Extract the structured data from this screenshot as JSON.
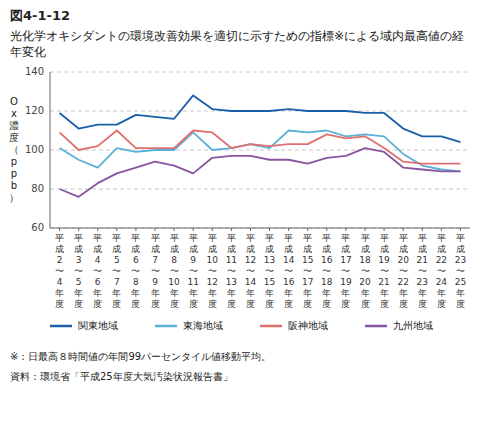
{
  "chart_data": {
    "type": "line",
    "title": "図4-1-12",
    "subtitle": "光化学オキシダントの環境改善効果を適切に示すための指標※による域内最高値の経年変化",
    "y_label": "Ox濃度（ppb）",
    "categories": [
      "平成2〜4年度",
      "平成3〜5年度",
      "平成4〜6年度",
      "平成5〜7年度",
      "平成6〜8年度",
      "平成7〜9年度",
      "平成8〜10年度",
      "平成9〜11年度",
      "平成10〜12年度",
      "平成11〜13年度",
      "平成12〜14年度",
      "平成13〜15年度",
      "平成14〜16年度",
      "平成15〜17年度",
      "平成16〜18年度",
      "平成17〜19年度",
      "平成18〜20年度",
      "平成19〜21年度",
      "平成20〜22年度",
      "平成21〜23年度",
      "平成22〜24年度",
      "平成23〜25年度"
    ],
    "series": [
      {
        "name": "関東地域",
        "color": "#1a5fa8",
        "values": [
          119,
          111,
          113,
          113,
          118,
          117,
          116,
          128,
          121,
          120,
          120,
          120,
          121,
          120,
          120,
          120,
          119,
          119,
          111,
          107,
          107,
          104
        ]
      },
      {
        "name": "東海地域",
        "color": "#5bb0d8",
        "values": [
          101,
          95,
          91,
          101,
          99,
          100,
          100,
          109,
          100,
          101,
          103,
          101,
          110,
          109,
          110,
          107,
          108,
          107,
          98,
          92,
          90,
          89
        ]
      },
      {
        "name": "阪神地域",
        "color": "#e07070",
        "values": [
          109,
          100,
          102,
          110,
          101,
          101,
          101,
          110,
          109,
          101,
          103,
          102,
          103,
          103,
          108,
          106,
          107,
          101,
          94,
          93,
          93,
          93
        ]
      },
      {
        "name": "九州地域",
        "color": "#8855a0",
        "values": [
          80,
          76,
          83,
          88,
          91,
          94,
          92,
          88,
          96,
          97,
          97,
          95,
          95,
          93,
          96,
          97,
          101,
          99,
          91,
          90,
          89,
          89
        ]
      }
    ],
    "ylim": [
      60,
      140
    ],
    "yticks": [
      60,
      80,
      100,
      120,
      140
    ],
    "grid": true,
    "legend": "bottom",
    "annotations": [
      "※：日最高８時間値の年間99パーセンタイル値移動平均。",
      "資料：環境省「平成25年度大気汚染状況報告書」"
    ]
  }
}
